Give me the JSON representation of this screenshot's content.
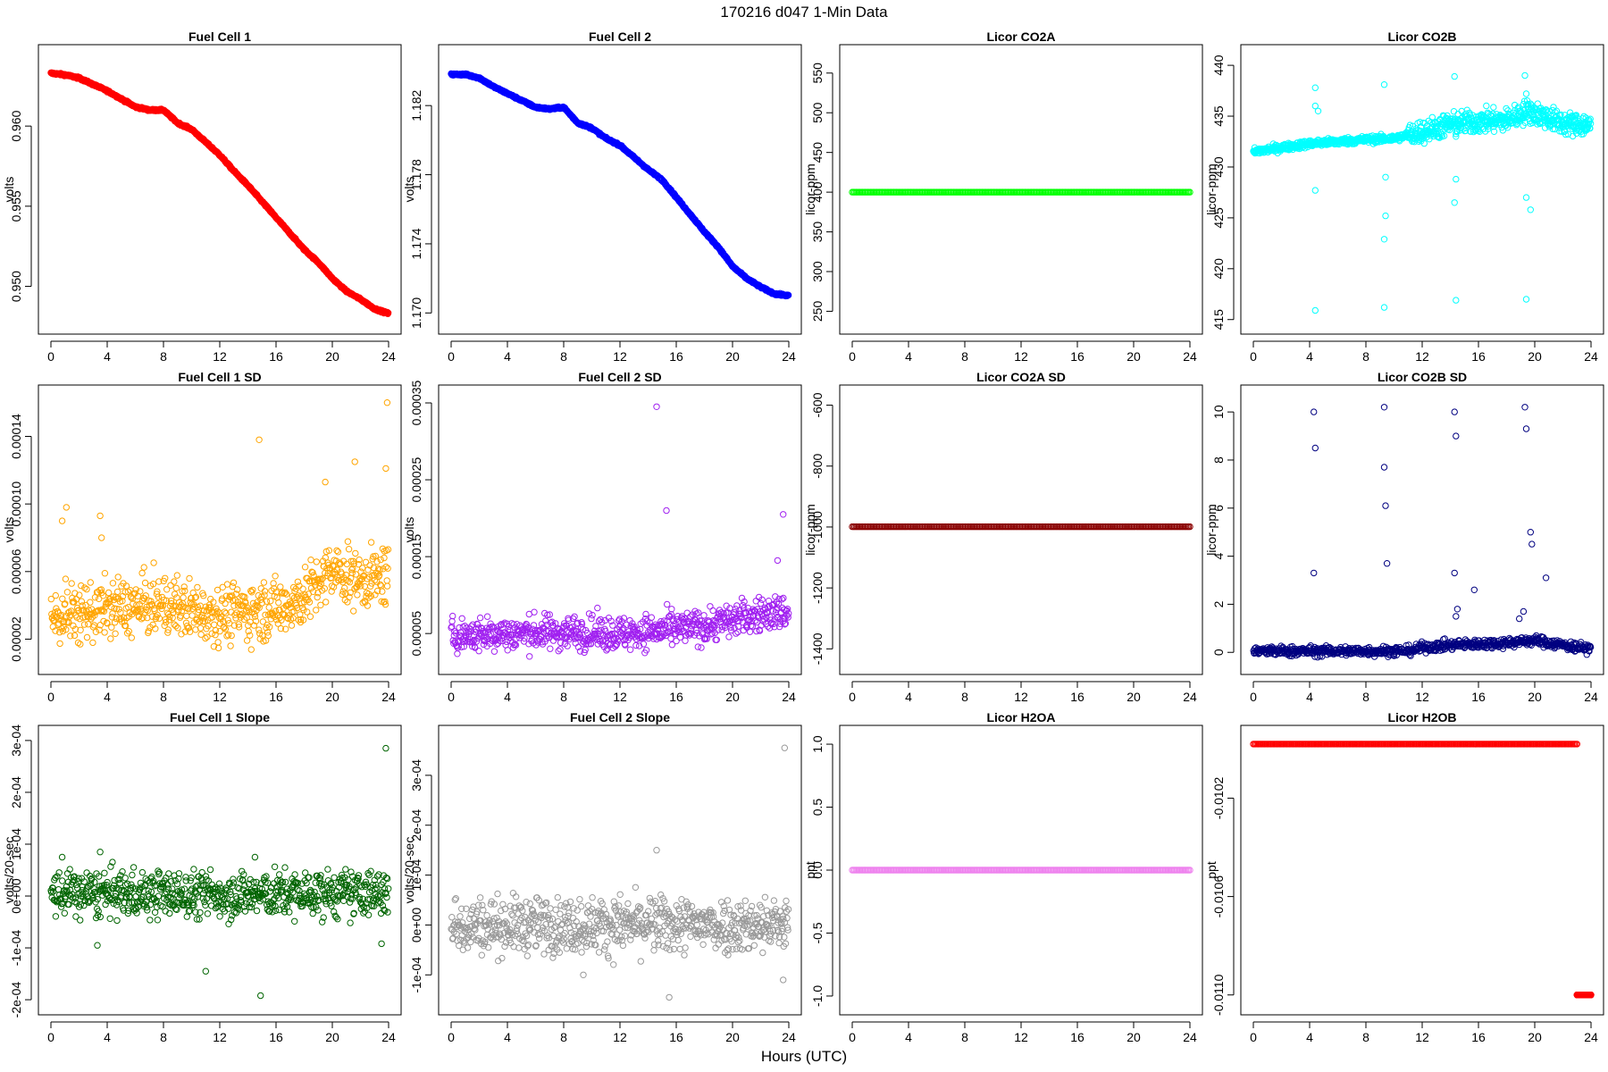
{
  "figure": {
    "title": "170216   d047   1-Min Data",
    "xlabel": "Hours (UTC)"
  },
  "chart_data": [
    {
      "id": "fc1",
      "type": "scatter",
      "title": "Fuel Cell 1",
      "ylabel": "volts",
      "color": "#ff0000",
      "xlim": [
        0,
        24
      ],
      "ylim": [
        0.9478,
        0.9643
      ],
      "xticks": [
        0,
        4,
        8,
        12,
        16,
        20,
        24
      ],
      "xtick_labels": [
        "0",
        "4",
        "8",
        "12",
        "16",
        "20",
        "24"
      ],
      "yticks": [
        0.95,
        0.955,
        0.96
      ],
      "ytick_labels": [
        "0.950",
        "0.955",
        "0.960"
      ],
      "series": [
        {
          "x": [
            0,
            1,
            2,
            3,
            4,
            5,
            6,
            7,
            8,
            9,
            10,
            11,
            12,
            13,
            14,
            15,
            16,
            17,
            18,
            19,
            20,
            21,
            22,
            23,
            24
          ],
          "y": [
            0.9633,
            0.9632,
            0.963,
            0.9626,
            0.9622,
            0.9617,
            0.9612,
            0.961,
            0.961,
            0.9602,
            0.9598,
            0.959,
            0.9582,
            0.9572,
            0.9563,
            0.9553,
            0.9543,
            0.9533,
            0.9523,
            0.9515,
            0.9505,
            0.9497,
            0.9492,
            0.9486,
            0.9483
          ]
        }
      ]
    },
    {
      "id": "fc2",
      "type": "scatter",
      "title": "Fuel Cell 2",
      "ylabel": "volts",
      "color": "#0000ff",
      "xlim": [
        0,
        24
      ],
      "ylim": [
        1.1695,
        1.1848
      ],
      "xticks": [
        0,
        4,
        8,
        12,
        16,
        20,
        24
      ],
      "xtick_labels": [
        "0",
        "4",
        "8",
        "12",
        "16",
        "20",
        "24"
      ],
      "yticks": [
        1.17,
        1.174,
        1.178,
        1.182
      ],
      "ytick_labels": [
        "1.170",
        "1.174",
        "1.178",
        "1.182"
      ],
      "series": [
        {
          "x": [
            0,
            1,
            2,
            3,
            4,
            5,
            6,
            7,
            8,
            9,
            10,
            11,
            12,
            13,
            14,
            15,
            16,
            17,
            18,
            19,
            20,
            21,
            22,
            23,
            24
          ],
          "y": [
            1.1838,
            1.1838,
            1.1836,
            1.1831,
            1.1827,
            1.1823,
            1.1819,
            1.1818,
            1.1819,
            1.181,
            1.1807,
            1.1801,
            1.1797,
            1.179,
            1.1783,
            1.1777,
            1.1767,
            1.1757,
            1.1747,
            1.1738,
            1.1727,
            1.172,
            1.1715,
            1.1711,
            1.171
          ]
        }
      ]
    },
    {
      "id": "co2a",
      "type": "scatter",
      "title": "Licor CO2A",
      "ylabel": "licor-ppm",
      "color": "#00ff00",
      "xlim": [
        0,
        24
      ],
      "ylim": [
        237,
        570
      ],
      "xticks": [
        0,
        4,
        8,
        12,
        16,
        20,
        24
      ],
      "xtick_labels": [
        "0",
        "4",
        "8",
        "12",
        "16",
        "20",
        "24"
      ],
      "yticks": [
        250,
        300,
        350,
        400,
        450,
        500,
        550
      ],
      "ytick_labels": [
        "250",
        "300",
        "350",
        "400",
        "450",
        "500",
        "550"
      ],
      "series": [
        {
          "x": [
            0,
            24
          ],
          "y": [
            400,
            400
          ],
          "dense": true
        }
      ]
    },
    {
      "id": "co2b",
      "type": "scatter",
      "title": "Licor CO2B",
      "ylabel": "licor-ppm",
      "color": "#00ffff",
      "xlim": [
        0,
        24
      ],
      "ylim": [
        414.8,
        440.8
      ],
      "xticks": [
        0,
        4,
        8,
        12,
        16,
        20,
        24
      ],
      "xtick_labels": [
        "0",
        "4",
        "8",
        "12",
        "16",
        "20",
        "24"
      ],
      "yticks": [
        415,
        420,
        425,
        430,
        435,
        440
      ],
      "ytick_labels": [
        "415",
        "420",
        "425",
        "430",
        "435",
        "440"
      ],
      "series": [
        {
          "x": [
            0,
            2,
            4,
            6,
            8,
            10,
            12,
            14,
            16,
            18,
            19.5,
            20,
            22,
            24
          ],
          "y": [
            431.5,
            431.9,
            432.3,
            432.5,
            432.7,
            432.8,
            433.5,
            434.2,
            434.5,
            434.6,
            435.5,
            435.3,
            434.3,
            434.1
          ]
        },
        {
          "x": [
            4.4,
            4.4,
            4.6,
            4.4,
            4.4,
            9.3,
            9.4,
            9.4,
            9.3,
            9.3,
            14.3,
            14.4,
            14.3,
            14.4,
            14.4,
            19.3,
            19.4,
            19.4,
            19.4,
            19.7
          ],
          "y": [
            437.8,
            436.0,
            435.5,
            427.7,
            415.9,
            438.1,
            429.0,
            425.2,
            422.9,
            416.2,
            438.9,
            428.8,
            426.5,
            416.9,
            433.0,
            439.0,
            437.2,
            427.0,
            417.0,
            425.8
          ]
        }
      ]
    },
    {
      "id": "fc1sd",
      "type": "scatter",
      "title": "Fuel Cell 1 SD",
      "ylabel": "volts",
      "color": "#ffa500",
      "xlim": [
        0,
        24
      ],
      "ylim": [
        6.5e-06,
        0.000163
      ],
      "xticks": [
        0,
        4,
        8,
        12,
        16,
        20,
        24
      ],
      "xtick_labels": [
        "0",
        "4",
        "8",
        "12",
        "16",
        "20",
        "24"
      ],
      "yticks": [
        2e-05,
        6e-05,
        0.0001,
        0.00014
      ],
      "ytick_labels": [
        "0.00002",
        "0.00006",
        "0.00010",
        "0.00014"
      ],
      "series": [
        {
          "x": [
            0,
            4,
            8,
            12,
            16,
            18,
            20,
            22,
            24
          ],
          "y": [
            3.3e-05,
            3.8e-05,
            4e-05,
            3.5e-05,
            3.8e-05,
            4.5e-05,
            6e-05,
            5.5e-05,
            5.8e-05
          ],
          "spread": 1.7e-05
        },
        {
          "x": [
            0.8,
            1.1,
            3.5,
            3.6,
            14.8,
            19.5,
            21.6,
            23.8,
            23.9
          ],
          "y": [
            9e-05,
            9.8e-05,
            9.3e-05,
            8e-05,
            0.000138,
            0.000113,
            0.000125,
            0.000121,
            0.00016
          ]
        }
      ]
    },
    {
      "id": "fc2sd",
      "type": "scatter",
      "title": "Fuel Cell 2 SD",
      "ylabel": "volts",
      "color": "#a020f0",
      "xlim": [
        0,
        24
      ],
      "ylim": [
        1.3e-05,
        0.000357
      ],
      "xticks": [
        0,
        4,
        8,
        12,
        16,
        20,
        24
      ],
      "xtick_labels": [
        "0",
        "4",
        "8",
        "12",
        "16",
        "20",
        "24"
      ],
      "yticks": [
        5e-05,
        0.00015,
        0.00025,
        0.00035
      ],
      "ytick_labels": [
        "0.00005",
        "0.00015",
        "0.00025",
        "0.00035"
      ],
      "series": [
        {
          "x": [
            0,
            4,
            8,
            12,
            16,
            18,
            20,
            22,
            24
          ],
          "y": [
            4.7e-05,
            5e-05,
            5.2e-05,
            5e-05,
            5.5e-05,
            6e-05,
            6.8e-05,
            7.5e-05,
            7.8e-05
          ],
          "spread": 2.2e-05
        },
        {
          "x": [
            14.6,
            15.3,
            23.6,
            23.2
          ],
          "y": [
            0.000345,
            0.00021,
            0.000205,
            0.000145
          ]
        }
      ]
    },
    {
      "id": "co2asd",
      "type": "scatter",
      "title": "Licor CO2A SD",
      "ylabel": "licor-ppm",
      "color": "#8b0000",
      "xlim": [
        0,
        24
      ],
      "ylim": [
        -1443,
        -575
      ],
      "xticks": [
        0,
        4,
        8,
        12,
        16,
        20,
        24
      ],
      "xtick_labels": [
        "0",
        "4",
        "8",
        "12",
        "16",
        "20",
        "24"
      ],
      "yticks": [
        -1400,
        -1200,
        -1000,
        -800,
        -600
      ],
      "ytick_labels": [
        "-1400",
        "-1200",
        "-1000",
        "-800",
        "-600"
      ],
      "series": [
        {
          "x": [
            0,
            24
          ],
          "y": [
            -999,
            -999
          ],
          "dense": true
        }
      ]
    },
    {
      "id": "co2bsd",
      "type": "scatter",
      "title": "Licor CO2B SD",
      "ylabel": "licor-ppm",
      "color": "#000080",
      "xlim": [
        0,
        24
      ],
      "ylim": [
        -0.4,
        10.6
      ],
      "xticks": [
        0,
        4,
        8,
        12,
        16,
        20,
        24
      ],
      "xtick_labels": [
        "0",
        "4",
        "8",
        "12",
        "16",
        "20",
        "24"
      ],
      "yticks": [
        0,
        2,
        4,
        6,
        8,
        10
      ],
      "ytick_labels": [
        "0",
        "2",
        "4",
        "6",
        "8",
        "10"
      ],
      "series": [
        {
          "x": [
            0,
            4,
            8,
            11,
            12,
            14,
            16,
            18,
            20,
            22,
            24
          ],
          "y": [
            0.05,
            0.05,
            0.05,
            0.06,
            0.2,
            0.3,
            0.35,
            0.4,
            0.5,
            0.3,
            0.15
          ],
          "spread": 0.2
        },
        {
          "x": [
            4.3,
            4.4,
            4.3,
            9.3,
            9.4,
            9.3,
            9.5,
            14.3,
            14.4,
            14.3,
            14.5,
            15.7,
            19.3,
            19.4,
            19.2,
            19.7,
            19.8,
            20.8,
            14.4,
            18.9
          ],
          "y": [
            10.0,
            8.5,
            3.3,
            10.2,
            6.1,
            7.7,
            3.7,
            10.0,
            9.0,
            3.3,
            1.8,
            2.6,
            10.2,
            9.3,
            1.7,
            5.0,
            4.5,
            3.1,
            1.5,
            1.4
          ]
        }
      ]
    },
    {
      "id": "fc1slope",
      "type": "scatter",
      "title": "Fuel Cell 1 Slope",
      "ylabel": "volts/20-sec",
      "color": "#006400",
      "xlim": [
        0,
        24
      ],
      "ylim": [
        -0.000205,
        0.000305
      ],
      "xticks": [
        0,
        4,
        8,
        12,
        16,
        20,
        24
      ],
      "xtick_labels": [
        "0",
        "4",
        "8",
        "12",
        "16",
        "20",
        "24"
      ],
      "yticks": [
        -0.0002,
        -0.0001,
        0,
        0.0001,
        0.0002,
        0.0003
      ],
      "ytick_labels": [
        "-2e-04",
        "-1e-04",
        "0e+00",
        "1e-04",
        "2e-04",
        "3e-04"
      ],
      "series": [
        {
          "x": [
            0,
            6,
            12,
            18,
            24
          ],
          "y": [
            5e-06,
            4e-06,
            3e-06,
            4e-06,
            5e-06
          ],
          "spread": 4.5e-05
        },
        {
          "x": [
            0.8,
            3.5,
            3.3,
            14.5,
            11.0,
            14.9,
            23.8,
            23.5
          ],
          "y": [
            7.5e-05,
            8.5e-05,
            -9.5e-05,
            7.5e-05,
            -0.000145,
            -0.000192,
            0.000285,
            -9.2e-05
          ]
        }
      ]
    },
    {
      "id": "fc2slope",
      "type": "scatter",
      "title": "Fuel Cell 2 Slope",
      "ylabel": "volts/20-sec",
      "color": "#999999",
      "xlim": [
        0,
        24
      ],
      "ylim": [
        -0.000155,
        0.000375
      ],
      "xticks": [
        0,
        4,
        8,
        12,
        16,
        20,
        24
      ],
      "xtick_labels": [
        "0",
        "4",
        "8",
        "12",
        "16",
        "20",
        "24"
      ],
      "yticks": [
        -0.0001,
        0,
        0.0001,
        0.0002,
        0.0003
      ],
      "ytick_labels": [
        "-1e-04",
        "0e+00",
        "1e-04",
        "2e-04",
        "3e-04"
      ],
      "series": [
        {
          "x": [
            0,
            6,
            12,
            18,
            24
          ],
          "y": [
            0.0,
            0.0,
            0.0,
            0.0,
            0.0
          ],
          "spread": 5.5e-05
        },
        {
          "x": [
            14.6,
            15.5,
            23.7,
            23.6,
            9.4
          ],
          "y": [
            0.00015,
            -0.000145,
            0.000355,
            -0.00011,
            -0.0001
          ]
        }
      ]
    },
    {
      "id": "h2oa",
      "type": "scatter",
      "title": "Licor H2OA",
      "ylabel": "ppt",
      "color": "#ee82ee",
      "xlim": [
        0,
        24
      ],
      "ylim": [
        -1.05,
        1.05
      ],
      "xticks": [
        0,
        4,
        8,
        12,
        16,
        20,
        24
      ],
      "xtick_labels": [
        "0",
        "4",
        "8",
        "12",
        "16",
        "20",
        "24"
      ],
      "yticks": [
        -1.0,
        -0.5,
        0.0,
        0.5,
        1.0
      ],
      "ytick_labels": [
        "-1.0",
        "-0.5",
        "0.0",
        "0.5",
        "1.0"
      ],
      "series": [
        {
          "x": [
            0,
            24
          ],
          "y": [
            0,
            0
          ],
          "dense": true
        }
      ]
    },
    {
      "id": "h2ob",
      "type": "scatter",
      "title": "Licor H2OB",
      "ylabel": "ppt",
      "color": "#ff0000",
      "xlim": [
        0,
        24
      ],
      "ylim": [
        -0.01103,
        -0.009955
      ],
      "xticks": [
        0,
        4,
        8,
        12,
        16,
        20,
        24
      ],
      "xtick_labels": [
        "0",
        "4",
        "8",
        "12",
        "16",
        "20",
        "24"
      ],
      "yticks": [
        -0.011,
        -0.0106,
        -0.0102
      ],
      "ytick_labels": [
        "-0.0110",
        "-0.0106",
        "-0.0102"
      ],
      "series": [
        {
          "x": [
            0,
            23
          ],
          "y": [
            -0.00998,
            -0.00998
          ],
          "dense": true
        },
        {
          "x": [
            23.0,
            24
          ],
          "y": [
            -0.011,
            -0.011
          ],
          "dense": true
        }
      ]
    }
  ]
}
